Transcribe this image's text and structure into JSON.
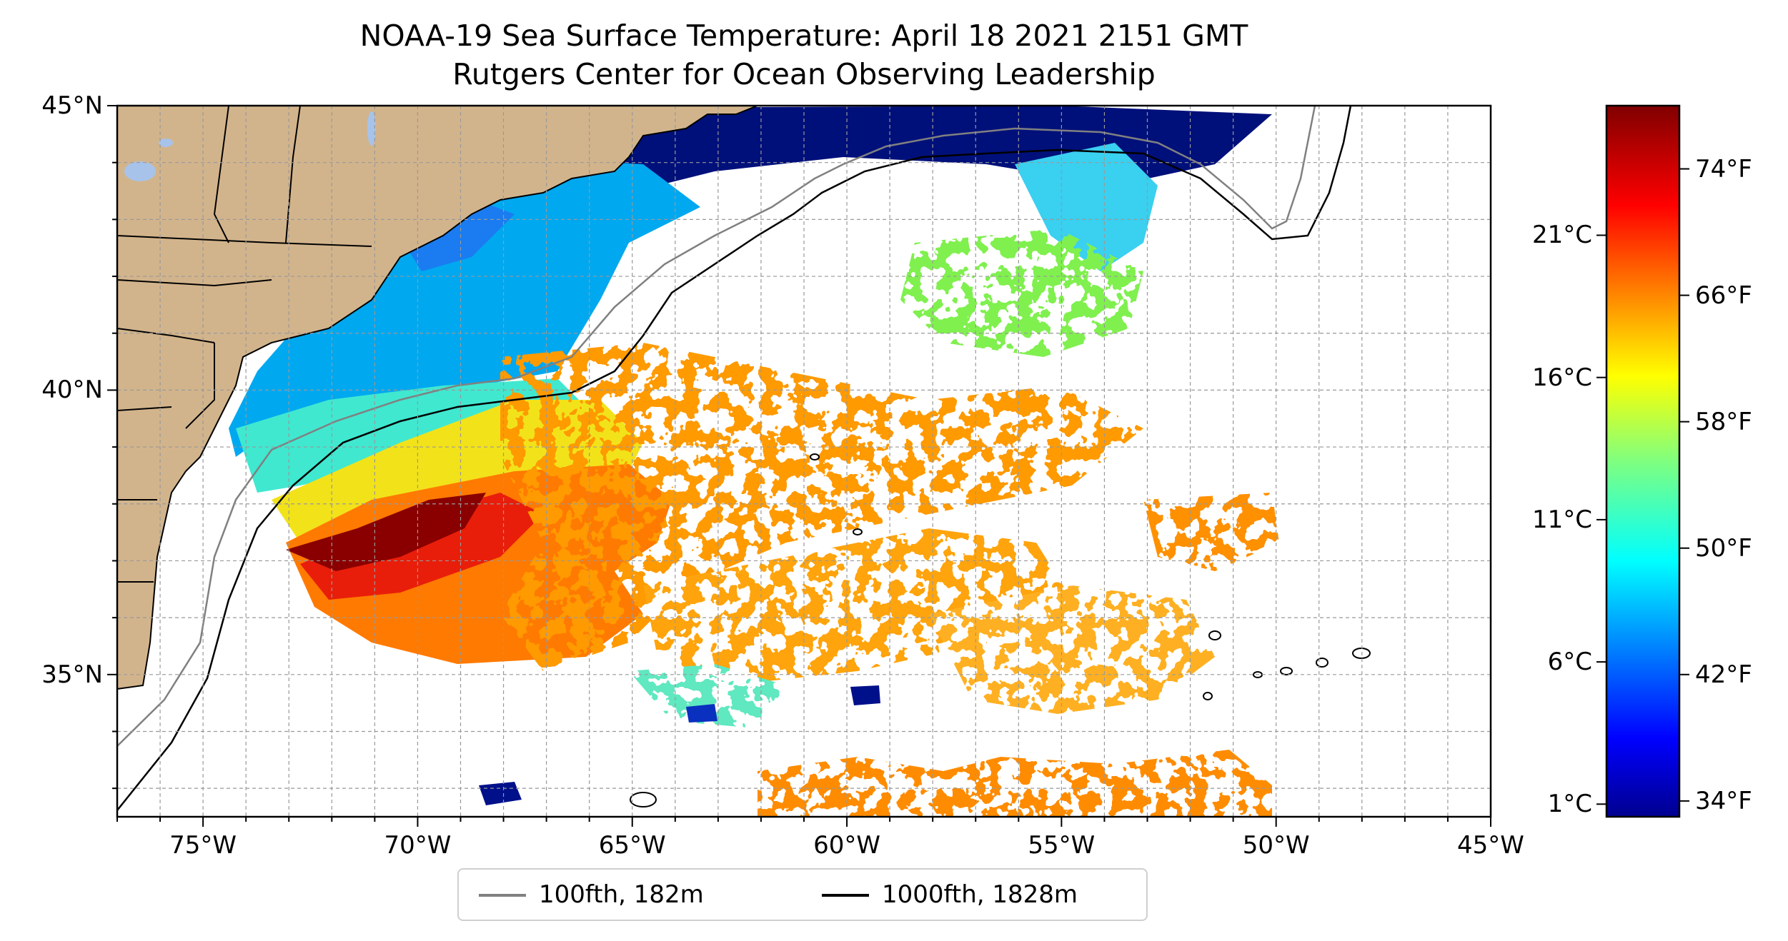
{
  "title": {
    "line1": "NOAA-19 Sea Surface Temperature: April 18 2021 2151 GMT",
    "line2": "Rutgers Center for Ocean Observing Leadership"
  },
  "map": {
    "lon_range": [
      -77,
      -45
    ],
    "lat_range": [
      32.5,
      45
    ],
    "gridlines": true,
    "land_color": "#d2b48c",
    "x_ticks": [
      {
        "value": -75,
        "label": "75°W"
      },
      {
        "value": -70,
        "label": "70°W"
      },
      {
        "value": -65,
        "label": "65°W"
      },
      {
        "value": -60,
        "label": "60°W"
      },
      {
        "value": -55,
        "label": "55°W"
      },
      {
        "value": -50,
        "label": "50°W"
      },
      {
        "value": -45,
        "label": "45°W"
      }
    ],
    "y_ticks": [
      {
        "value": 45,
        "label": "45°N"
      },
      {
        "value": 40,
        "label": "40°N"
      },
      {
        "value": 35,
        "label": "35°N"
      }
    ]
  },
  "colorbar": {
    "colormap": "jet",
    "range_f": [
      33,
      78
    ],
    "celsius_ticks": [
      {
        "value": 21,
        "label": "21°C"
      },
      {
        "value": 16,
        "label": "16°C"
      },
      {
        "value": 11,
        "label": "11°C"
      },
      {
        "value": 6,
        "label": "6°C"
      },
      {
        "value": 1,
        "label": "1°C"
      }
    ],
    "fahrenheit_ticks": [
      {
        "value": 74,
        "label": "74°F"
      },
      {
        "value": 66,
        "label": "66°F"
      },
      {
        "value": 58,
        "label": "58°F"
      },
      {
        "value": 50,
        "label": "50°F"
      },
      {
        "value": 42,
        "label": "42°F"
      },
      {
        "value": 34,
        "label": "34°F"
      }
    ]
  },
  "legend": {
    "items": [
      {
        "label": "100fth, 182m",
        "color": "#808080"
      },
      {
        "label": "1000fth, 1828m",
        "color": "#000000"
      }
    ]
  }
}
